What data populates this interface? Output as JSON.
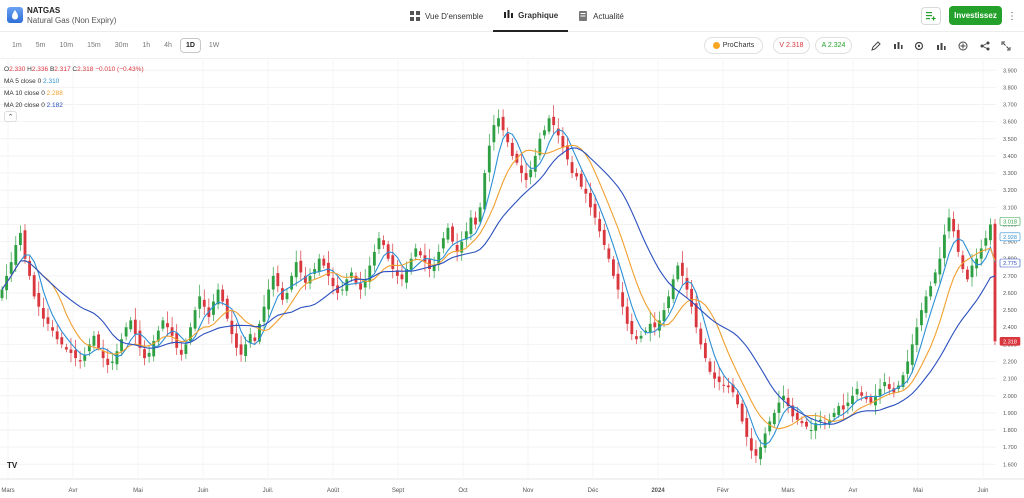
{
  "instrument": {
    "symbol": "NATGAS",
    "name": "Natural Gas (Non Expiry)"
  },
  "nav_tabs": [
    {
      "label": "Vue D'ensemble",
      "icon": "grid-icon"
    },
    {
      "label": "Graphique",
      "icon": "candles-icon",
      "active": true
    },
    {
      "label": "Actualité",
      "icon": "news-icon"
    }
  ],
  "actions": {
    "watchlist_icon": "add-to-list-icon",
    "invest_label": "Investissez",
    "more_icon": "more-vertical-icon"
  },
  "timeframes": [
    {
      "label": "1m"
    },
    {
      "label": "5m"
    },
    {
      "label": "10m"
    },
    {
      "label": "15m"
    },
    {
      "label": "30m"
    },
    {
      "label": "1h"
    },
    {
      "label": "4h"
    },
    {
      "label": "1D",
      "active": true
    },
    {
      "label": "1W"
    }
  ],
  "trade": {
    "procharts_label": "ProCharts",
    "sell_label": "V 2.318",
    "buy_label": "A 2.324"
  },
  "toolbar_icons": [
    "pencil-icon",
    "indicators-icon",
    "settings-icon",
    "chart-type-icon",
    "add-icon",
    "share-icon",
    "fullscreen-icon"
  ],
  "legend": {
    "ohlc": {
      "o_label": "O",
      "o": "2.330",
      "h_label": "H",
      "h": "2.336",
      "b_label": "B",
      "b": "2.317",
      "c_label": "C",
      "c": "2.318",
      "change": "−0.010 (−0.43%)"
    },
    "ma5": {
      "label": "MA 5 close 0",
      "value": "2.310"
    },
    "ma10": {
      "label": "MA 10 close 0",
      "value": "2.288"
    },
    "ma20": {
      "label": "MA 20 close 0",
      "value": "2.182"
    }
  },
  "colors": {
    "up": "#2ea043",
    "down": "#d9363e",
    "ma5": "#2d8fd6",
    "ma10": "#f0a030",
    "ma20": "#2a4fbf",
    "invest": "#23a12b"
  },
  "chart_data": {
    "type": "candlestick",
    "y_ticks": [
      "3.900",
      "3.800",
      "3.700",
      "3.600",
      "3.500",
      "3.400",
      "3.300",
      "3.200",
      "3.100",
      "3.000",
      "2.900",
      "2.800",
      "2.700",
      "2.600",
      "2.500",
      "2.400",
      "2.300",
      "2.200",
      "2.100",
      "2.000",
      "1.900",
      "1.800",
      "1.700",
      "1.600"
    ],
    "ylim": [
      1.52,
      3.96
    ],
    "x_labels": [
      "Mars",
      "Avr",
      "Mai",
      "Juin",
      "Juil.",
      "Août",
      "Sept",
      "Oct",
      "Nov",
      "Déc",
      "2024",
      "Févr",
      "Mars",
      "Avr",
      "Mai",
      "Juin"
    ],
    "price_tags": [
      {
        "value": 3.018,
        "label": "3.018",
        "style": "green-outline"
      },
      {
        "value": 2.928,
        "label": "2.928",
        "style": "blue-outline"
      },
      {
        "value": 2.775,
        "label": "2.775",
        "style": "navy-outline"
      },
      {
        "value": 2.318,
        "label": "2.318",
        "style": "red-fill"
      }
    ],
    "close_series": [
      2.62,
      2.7,
      2.78,
      2.88,
      2.95,
      2.8,
      2.7,
      2.58,
      2.52,
      2.45,
      2.42,
      2.38,
      2.33,
      2.3,
      2.27,
      2.25,
      2.22,
      2.2,
      2.24,
      2.3,
      2.35,
      2.28,
      2.22,
      2.18,
      2.2,
      2.26,
      2.33,
      2.4,
      2.44,
      2.36,
      2.28,
      2.22,
      2.25,
      2.32,
      2.38,
      2.44,
      2.4,
      2.35,
      2.28,
      2.24,
      2.3,
      2.4,
      2.5,
      2.58,
      2.52,
      2.46,
      2.55,
      2.62,
      2.55,
      2.45,
      2.36,
      2.28,
      2.24,
      2.3,
      2.36,
      2.32,
      2.42,
      2.52,
      2.62,
      2.7,
      2.64,
      2.56,
      2.6,
      2.7,
      2.78,
      2.72,
      2.66,
      2.7,
      2.74,
      2.8,
      2.76,
      2.7,
      2.64,
      2.6,
      2.62,
      2.68,
      2.72,
      2.66,
      2.62,
      2.68,
      2.76,
      2.84,
      2.92,
      2.88,
      2.8,
      2.74,
      2.7,
      2.68,
      2.74,
      2.8,
      2.86,
      2.82,
      2.78,
      2.74,
      2.76,
      2.84,
      2.92,
      2.98,
      2.9,
      2.84,
      2.9,
      2.96,
      3.04,
      3.0,
      3.1,
      3.3,
      3.46,
      3.58,
      3.62,
      3.55,
      3.48,
      3.4,
      3.36,
      3.3,
      3.26,
      3.32,
      3.4,
      3.5,
      3.55,
      3.62,
      3.58,
      3.52,
      3.45,
      3.38,
      3.3,
      3.28,
      3.22,
      3.18,
      3.1,
      3.04,
      2.96,
      2.88,
      2.8,
      2.7,
      2.62,
      2.52,
      2.42,
      2.36,
      2.33,
      2.35,
      2.38,
      2.42,
      2.4,
      2.44,
      2.5,
      2.58,
      2.68,
      2.76,
      2.7,
      2.62,
      2.52,
      2.4,
      2.3,
      2.22,
      2.14,
      2.1,
      2.08,
      2.06,
      2.05,
      2.02,
      1.95,
      1.85,
      1.76,
      1.68,
      1.65,
      1.7,
      1.78,
      1.85,
      1.9,
      1.96,
      2.0,
      1.94,
      1.88,
      1.86,
      1.84,
      1.82,
      1.8,
      1.84,
      1.86,
      1.84,
      1.86,
      1.9,
      1.94,
      1.92,
      1.96,
      2.0,
      2.04,
      2.0,
      1.98,
      1.96,
      2.0,
      2.04,
      2.08,
      2.04,
      2.02,
      2.06,
      2.12,
      2.2,
      2.3,
      2.4,
      2.5,
      2.58,
      2.64,
      2.72,
      2.8,
      2.94,
      3.04,
      2.96,
      2.84,
      2.74,
      2.68,
      2.76,
      2.8,
      2.86,
      2.92,
      3.0,
      2.318
    ]
  }
}
